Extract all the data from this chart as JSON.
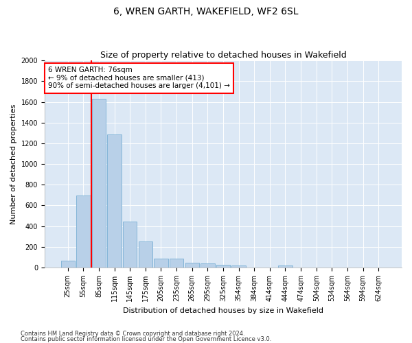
{
  "title": "6, WREN GARTH, WAKEFIELD, WF2 6SL",
  "subtitle": "Size of property relative to detached houses in Wakefield",
  "xlabel": "Distribution of detached houses by size in Wakefield",
  "ylabel": "Number of detached properties",
  "bar_color": "#b8d0e8",
  "bar_edge_color": "#7aafd4",
  "categories": [
    "25sqm",
    "55sqm",
    "85sqm",
    "115sqm",
    "145sqm",
    "175sqm",
    "205sqm",
    "235sqm",
    "265sqm",
    "295sqm",
    "325sqm",
    "354sqm",
    "384sqm",
    "414sqm",
    "444sqm",
    "474sqm",
    "504sqm",
    "534sqm",
    "564sqm",
    "594sqm",
    "624sqm"
  ],
  "values": [
    65,
    695,
    1630,
    1285,
    445,
    255,
    88,
    88,
    48,
    38,
    28,
    18,
    0,
    0,
    18,
    0,
    0,
    0,
    0,
    0,
    0
  ],
  "ylim": [
    0,
    2000
  ],
  "yticks": [
    0,
    200,
    400,
    600,
    800,
    1000,
    1200,
    1400,
    1600,
    1800,
    2000
  ],
  "annotation_text": "6 WREN GARTH: 76sqm\n← 9% of detached houses are smaller (413)\n90% of semi-detached houses are larger (4,101) →",
  "footnote1": "Contains HM Land Registry data © Crown copyright and database right 2024.",
  "footnote2": "Contains public sector information licensed under the Open Government Licence v3.0.",
  "background_color": "#ffffff",
  "plot_bg_color": "#dce8f5",
  "grid_color": "#ffffff",
  "red_line_x": 1.5,
  "title_fontsize": 10,
  "subtitle_fontsize": 9,
  "ylabel_fontsize": 8,
  "xlabel_fontsize": 8,
  "tick_fontsize": 7,
  "annot_fontsize": 7.5,
  "footnote_fontsize": 6
}
